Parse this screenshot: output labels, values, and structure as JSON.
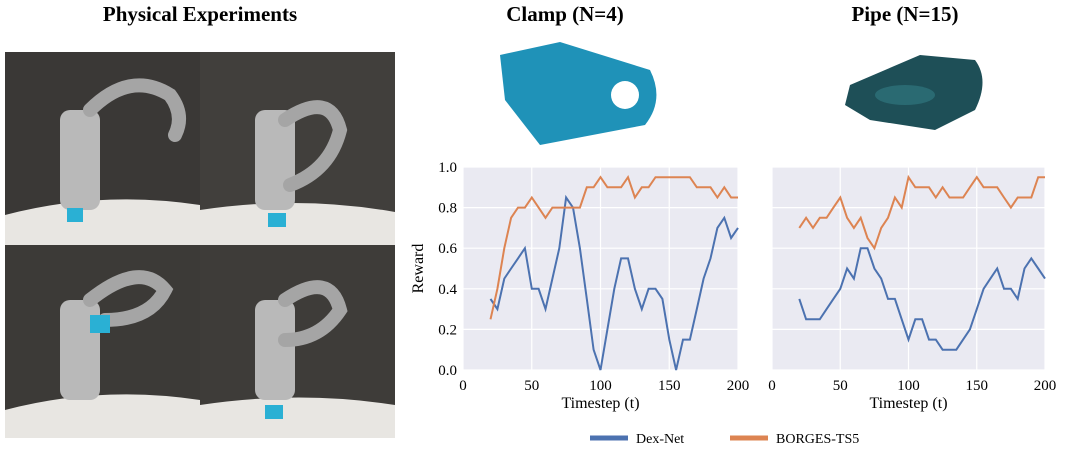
{
  "figure_title": "Physical Experiments",
  "chart_data": [
    {
      "type": "line",
      "title": "Clamp (N=4)",
      "x_label": "Timestep (t)",
      "y_label": "Reward",
      "x": [
        20,
        25,
        30,
        35,
        40,
        45,
        50,
        55,
        60,
        65,
        70,
        75,
        80,
        85,
        90,
        95,
        100,
        105,
        110,
        115,
        120,
        125,
        130,
        135,
        140,
        145,
        150,
        155,
        160,
        165,
        170,
        175,
        180,
        185,
        190,
        195,
        200
      ],
      "series": [
        {
          "name": "Dex-Net",
          "color": "#4c72b0",
          "values": [
            0.35,
            0.3,
            0.45,
            0.5,
            0.55,
            0.6,
            0.4,
            0.4,
            0.3,
            0.45,
            0.6,
            0.85,
            0.8,
            0.6,
            0.35,
            0.1,
            0.0,
            0.2,
            0.4,
            0.55,
            0.55,
            0.4,
            0.3,
            0.4,
            0.4,
            0.35,
            0.15,
            0.0,
            0.15,
            0.15,
            0.3,
            0.45,
            0.55,
            0.7,
            0.75,
            0.65,
            0.7
          ]
        },
        {
          "name": "BORGES-TS5",
          "color": "#dd8452",
          "values": [
            0.25,
            0.4,
            0.6,
            0.75,
            0.8,
            0.8,
            0.85,
            0.8,
            0.75,
            0.8,
            0.8,
            0.8,
            0.8,
            0.8,
            0.9,
            0.9,
            0.95,
            0.9,
            0.9,
            0.9,
            0.95,
            0.85,
            0.9,
            0.9,
            0.95,
            0.95,
            0.95,
            0.95,
            0.95,
            0.95,
            0.9,
            0.9,
            0.9,
            0.85,
            0.9,
            0.85,
            0.85
          ]
        }
      ],
      "xlim": [
        0,
        200
      ],
      "ylim": [
        0,
        1
      ],
      "xticks": [
        0,
        50,
        100,
        150,
        200
      ],
      "yticks": [
        {
          "value": 0,
          "label": "0.0"
        },
        {
          "value": 0.2,
          "label": "0.2"
        },
        {
          "value": 0.4,
          "label": "0.4"
        },
        {
          "value": 0.6,
          "label": "0.6"
        },
        {
          "value": 0.8,
          "label": "0.8"
        },
        {
          "value": 1,
          "label": "1.0"
        }
      ],
      "ytick_labels": true,
      "grid": true,
      "legend": "bottom"
    },
    {
      "type": "line",
      "title": "Pipe (N=15)",
      "x_label": "Timestep (t)",
      "x": [
        20,
        25,
        30,
        35,
        40,
        45,
        50,
        55,
        60,
        65,
        70,
        75,
        80,
        85,
        90,
        95,
        100,
        105,
        110,
        115,
        120,
        125,
        130,
        135,
        140,
        145,
        150,
        155,
        160,
        165,
        170,
        175,
        180,
        185,
        190,
        195,
        200
      ],
      "series": [
        {
          "name": "Dex-Net",
          "color": "#4c72b0",
          "values": [
            0.35,
            0.25,
            0.25,
            0.25,
            0.3,
            0.35,
            0.4,
            0.5,
            0.45,
            0.6,
            0.6,
            0.5,
            0.45,
            0.35,
            0.35,
            0.25,
            0.15,
            0.25,
            0.25,
            0.15,
            0.15,
            0.1,
            0.1,
            0.1,
            0.15,
            0.2,
            0.3,
            0.4,
            0.45,
            0.5,
            0.4,
            0.4,
            0.35,
            0.5,
            0.55,
            0.5,
            0.45
          ]
        },
        {
          "name": "BORGES-TS5",
          "color": "#dd8452",
          "values": [
            0.7,
            0.75,
            0.7,
            0.75,
            0.75,
            0.8,
            0.85,
            0.75,
            0.7,
            0.75,
            0.65,
            0.6,
            0.7,
            0.75,
            0.85,
            0.8,
            0.95,
            0.9,
            0.9,
            0.9,
            0.85,
            0.9,
            0.85,
            0.85,
            0.85,
            0.9,
            0.95,
            0.9,
            0.9,
            0.9,
            0.85,
            0.8,
            0.85,
            0.85,
            0.85,
            0.95,
            0.95
          ]
        }
      ],
      "xlim": [
        0,
        200
      ],
      "ylim": [
        0,
        1
      ],
      "xticks": [
        0,
        50,
        100,
        150,
        200
      ],
      "yticks": [
        0,
        0.2,
        0.4,
        0.6,
        0.8,
        1
      ],
      "ytick_labels": false,
      "grid": true
    }
  ]
}
